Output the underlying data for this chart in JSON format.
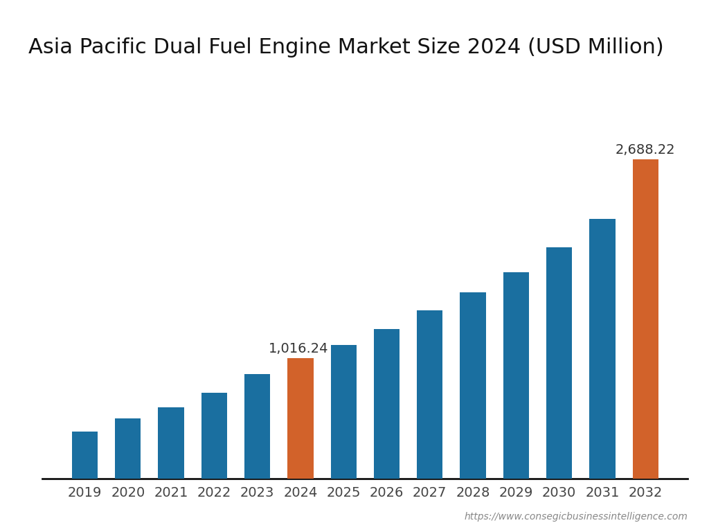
{
  "title": "Asia Pacific Dual Fuel Engine Market Size 2024 (USD Million)",
  "years": [
    "2019",
    "2020",
    "2021",
    "2022",
    "2023",
    "2024",
    "2025",
    "2026",
    "2027",
    "2028",
    "2029",
    "2030",
    "2031",
    "2032"
  ],
  "values": [
    400,
    510,
    600,
    725,
    880,
    1016.24,
    1130,
    1260,
    1420,
    1570,
    1740,
    1950,
    2190,
    2688.22
  ],
  "bar_colors": [
    "#1a6fa0",
    "#1a6fa0",
    "#1a6fa0",
    "#1a6fa0",
    "#1a6fa0",
    "#d2622a",
    "#1a6fa0",
    "#1a6fa0",
    "#1a6fa0",
    "#1a6fa0",
    "#1a6fa0",
    "#1a6fa0",
    "#1a6fa0",
    "#d2622a"
  ],
  "highlighted_labels": [
    {
      "index": 5,
      "text": "1,016.24"
    },
    {
      "index": 13,
      "text": "2,688.22"
    }
  ],
  "background_color": "#ffffff",
  "bar_color_blue": "#1a6fa0",
  "bar_color_orange": "#d2622a",
  "title_fontsize": 22,
  "tick_fontsize": 14,
  "label_fontsize": 14,
  "watermark": "https://www.consegicbusinessintelligence.com"
}
